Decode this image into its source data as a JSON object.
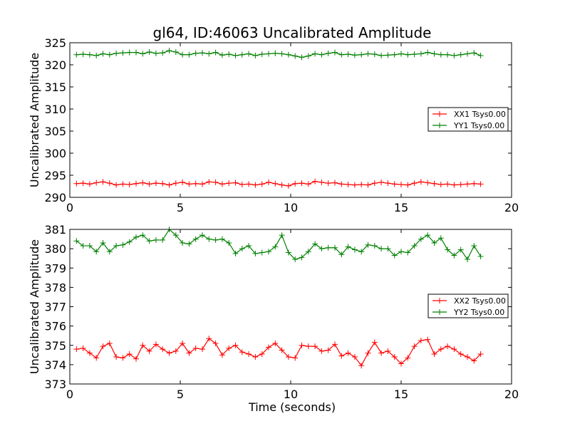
{
  "figure": {
    "title": "gl64, ID:46063 Uncalibrated Amplitude",
    "xlabel": "Time (seconds)"
  },
  "chart_data": [
    {
      "type": "line",
      "title": "gl64, ID:46063 Uncalibrated Amplitude",
      "xlabel": "",
      "ylabel": "Uncalibrated Amplitude",
      "xlim": [
        0,
        20
      ],
      "ylim": [
        290,
        325
      ],
      "xticks": [
        0,
        5,
        10,
        15,
        20
      ],
      "yticks": [
        290,
        295,
        300,
        305,
        310,
        315,
        320,
        325
      ],
      "grid": false,
      "legend_position": "right",
      "marker": "+",
      "x": [
        0.3,
        0.6,
        0.9,
        1.2,
        1.5,
        1.8,
        2.1,
        2.4,
        2.7,
        3.0,
        3.3,
        3.6,
        3.9,
        4.2,
        4.5,
        4.8,
        5.1,
        5.4,
        5.7,
        6.0,
        6.3,
        6.6,
        6.9,
        7.2,
        7.5,
        7.8,
        8.1,
        8.4,
        8.7,
        9.0,
        9.3,
        9.6,
        9.9,
        10.2,
        10.5,
        10.8,
        11.1,
        11.4,
        11.7,
        12.0,
        12.3,
        12.6,
        12.9,
        13.2,
        13.5,
        13.8,
        14.1,
        14.4,
        14.7,
        15.0,
        15.3,
        15.6,
        15.9,
        16.2,
        16.5,
        16.8,
        17.1,
        17.4,
        17.7,
        18.0,
        18.3,
        18.6
      ],
      "series": [
        {
          "name": "XX1 Tsys0.00",
          "color": "#ff0000",
          "values": [
            293.1,
            293.2,
            293.0,
            293.3,
            293.5,
            293.2,
            292.8,
            293.0,
            292.9,
            293.1,
            293.3,
            293.0,
            293.2,
            293.1,
            292.8,
            293.2,
            293.4,
            293.0,
            293.1,
            293.0,
            293.5,
            293.4,
            293.0,
            293.2,
            293.3,
            292.9,
            293.0,
            292.8,
            293.0,
            293.4,
            293.1,
            292.8,
            292.6,
            293.1,
            293.2,
            293.0,
            293.6,
            293.4,
            293.2,
            293.3,
            293.0,
            292.9,
            292.8,
            292.9,
            292.8,
            293.2,
            293.4,
            293.2,
            293.0,
            292.9,
            292.8,
            293.2,
            293.5,
            293.3,
            293.1,
            292.9,
            293.0,
            292.8,
            292.9,
            293.0,
            293.1,
            293.0
          ]
        },
        {
          "name": "YY1 Tsys0.00",
          "color": "#008000",
          "values": [
            322.3,
            322.4,
            322.3,
            322.1,
            322.5,
            322.3,
            322.6,
            322.7,
            322.8,
            322.8,
            322.5,
            322.9,
            322.6,
            322.7,
            323.2,
            322.9,
            322.3,
            322.3,
            322.6,
            322.7,
            322.5,
            322.8,
            322.2,
            322.4,
            322.1,
            322.3,
            322.5,
            322.1,
            322.4,
            322.5,
            322.6,
            322.5,
            322.3,
            322.0,
            321.7,
            322.0,
            322.5,
            322.3,
            322.6,
            322.8,
            322.3,
            322.4,
            322.2,
            322.3,
            322.5,
            322.4,
            322.1,
            322.2,
            322.3,
            322.5,
            322.3,
            322.4,
            322.5,
            322.8,
            322.5,
            322.3,
            322.3,
            322.1,
            322.3,
            322.5,
            322.7,
            322.1
          ]
        }
      ]
    },
    {
      "type": "line",
      "title": "",
      "xlabel": "Time (seconds)",
      "ylabel": "Uncalibrated Amplitude",
      "xlim": [
        0,
        20
      ],
      "ylim": [
        373,
        381
      ],
      "xticks": [
        0,
        5,
        10,
        15,
        20
      ],
      "yticks": [
        373,
        374,
        375,
        376,
        377,
        378,
        379,
        380,
        381
      ],
      "grid": false,
      "legend_position": "right",
      "marker": "+",
      "x": [
        0.3,
        0.6,
        0.9,
        1.2,
        1.5,
        1.8,
        2.1,
        2.4,
        2.7,
        3.0,
        3.3,
        3.6,
        3.9,
        4.2,
        4.5,
        4.8,
        5.1,
        5.4,
        5.7,
        6.0,
        6.3,
        6.6,
        6.9,
        7.2,
        7.5,
        7.8,
        8.1,
        8.4,
        8.7,
        9.0,
        9.3,
        9.6,
        9.9,
        10.2,
        10.5,
        10.8,
        11.1,
        11.4,
        11.7,
        12.0,
        12.3,
        12.6,
        12.9,
        13.2,
        13.5,
        13.8,
        14.1,
        14.4,
        14.7,
        15.0,
        15.3,
        15.6,
        15.9,
        16.2,
        16.5,
        16.8,
        17.1,
        17.4,
        17.7,
        18.0,
        18.3,
        18.6
      ],
      "series": [
        {
          "name": "XX2 Tsys0.00",
          "color": "#ff0000",
          "values": [
            374.8,
            374.85,
            374.6,
            374.35,
            374.95,
            375.1,
            374.4,
            374.35,
            374.55,
            374.3,
            375.0,
            374.7,
            375.05,
            374.8,
            374.6,
            374.7,
            375.1,
            374.6,
            374.85,
            374.8,
            375.35,
            375.1,
            374.5,
            374.85,
            375.0,
            374.65,
            374.55,
            374.4,
            374.55,
            374.9,
            375.1,
            374.75,
            374.4,
            374.35,
            375.0,
            374.95,
            374.95,
            374.7,
            374.75,
            375.05,
            374.45,
            374.6,
            374.4,
            373.95,
            374.6,
            375.15,
            374.6,
            374.7,
            374.4,
            374.05,
            374.35,
            374.95,
            375.25,
            375.3,
            374.55,
            374.8,
            374.95,
            374.8,
            374.55,
            374.4,
            374.2,
            374.55
          ]
        },
        {
          "name": "YY2 Tsys0.00",
          "color": "#008000",
          "values": [
            380.4,
            380.15,
            380.15,
            379.85,
            380.3,
            379.85,
            380.15,
            380.2,
            380.35,
            380.6,
            380.7,
            380.4,
            380.45,
            380.45,
            381.0,
            380.7,
            380.3,
            380.25,
            380.5,
            380.7,
            380.5,
            380.45,
            380.5,
            380.3,
            379.75,
            380.0,
            380.15,
            379.75,
            379.8,
            379.85,
            380.1,
            380.7,
            379.8,
            379.45,
            379.55,
            379.85,
            380.25,
            380.0,
            380.05,
            380.05,
            379.7,
            380.1,
            379.95,
            379.85,
            380.2,
            380.15,
            380.0,
            380.0,
            379.65,
            379.85,
            379.8,
            380.15,
            380.5,
            380.7,
            380.3,
            380.55,
            379.95,
            379.65,
            379.95,
            379.45,
            380.15,
            379.6
          ]
        }
      ]
    }
  ]
}
